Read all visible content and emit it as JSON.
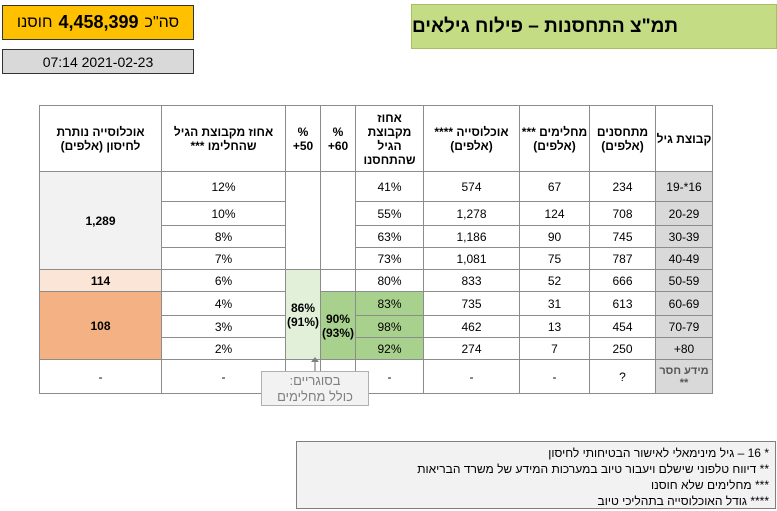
{
  "title": "תמ\"צ התחסנות – פילוח גילאים",
  "total": {
    "prefix": "סה\"כ",
    "value": "4,458,399",
    "suffix": "חוסנו"
  },
  "date": "07:14 2021-02-23",
  "headers": {
    "age_group": "קבוצת גיל",
    "vaccinated": "מתחסנים (אלפים)",
    "recovered": "מחלימים *** (אלפים)",
    "population": "אוכלוסייה **** (אלפים)",
    "pct_group": "אחוז מקבוצת הגיל שהתחסנו",
    "pct60": "% 60+",
    "pct50": "% 50+",
    "pct_recovered": "אחוז מקבוצת הגיל שהחלימו ***",
    "remaining": "אוכלוסייה נותרת לחיסון (אלפים)"
  },
  "rows": [
    {
      "age": "16*-19",
      "vaccinated": "234",
      "recovered": "67",
      "population": "574",
      "pct_group": "41%",
      "pct_recovered": "12%"
    },
    {
      "age": "20-29",
      "vaccinated": "708",
      "recovered": "124",
      "population": "1,278",
      "pct_group": "55%",
      "pct_recovered": "10%"
    },
    {
      "age": "30-39",
      "vaccinated": "745",
      "recovered": "90",
      "population": "1,186",
      "pct_group": "63%",
      "pct_recovered": "8%"
    },
    {
      "age": "40-49",
      "vaccinated": "787",
      "recovered": "75",
      "population": "1,081",
      "pct_group": "73%",
      "pct_recovered": "7%"
    },
    {
      "age": "50-59",
      "vaccinated": "666",
      "recovered": "52",
      "population": "833",
      "pct_group": "80%",
      "pct_recovered": "6%"
    },
    {
      "age": "60-69",
      "vaccinated": "613",
      "recovered": "31",
      "population": "735",
      "pct_group": "83%",
      "pct_recovered": "4%"
    },
    {
      "age": "70-79",
      "vaccinated": "454",
      "recovered": "13",
      "population": "462",
      "pct_group": "98%",
      "pct_recovered": "3%"
    },
    {
      "age": "80+",
      "vaccinated": "250",
      "recovered": "7",
      "population": "274",
      "pct_group": "92%",
      "pct_recovered": "2%"
    },
    {
      "age": "מידע חסר **",
      "vaccinated": "?",
      "recovered": "-",
      "population": "-",
      "pct_group": "-",
      "pct_recovered": "-"
    }
  ],
  "merged": {
    "remaining_under50": "1,289",
    "remaining_50_59": "114",
    "remaining_60plus": "108",
    "remaining_missing": "-",
    "pct50_main": "86%",
    "pct50_sub": "(91%)",
    "pct60_main": "90%",
    "pct60_sub": "(93%)"
  },
  "callout": {
    "line1": "בסוגריים:",
    "line2": "כולל מחלימים"
  },
  "notes": [
    "* 16 – גיל מינימאלי לאישור הבטיחותי לחיסון",
    "** דיווח טלפוני שישלם ויעבור טיוב במערכות המידע של משרד הבריאות",
    "*** מחלימים שלא חוסנו",
    "**** גודל האוכלוסייה בתהליכי טיוב"
  ]
}
